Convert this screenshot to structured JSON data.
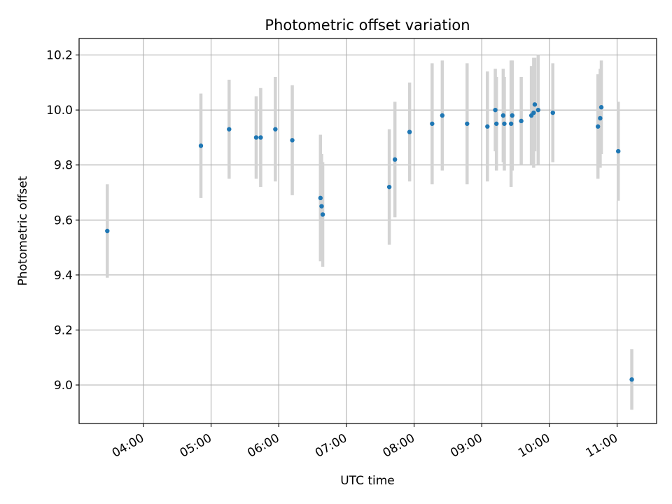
{
  "chart_data": {
    "type": "scatter",
    "title": "Photometric offset variation",
    "xlabel": "UTC time",
    "ylabel": "Photometric offset",
    "x_is_time": true,
    "xlim": [
      "03:03",
      "11:35"
    ],
    "ylim": [
      8.86,
      10.26
    ],
    "grid": true,
    "x_ticks": [
      "04:00",
      "05:00",
      "06:00",
      "07:00",
      "08:00",
      "09:00",
      "10:00",
      "11:00"
    ],
    "y_ticks": [
      9.0,
      9.2,
      9.4,
      9.6,
      9.8,
      10.0,
      10.2
    ],
    "y_tick_labels": [
      "9.0",
      "9.2",
      "9.4",
      "9.6",
      "9.8",
      "10.0",
      "10.2"
    ],
    "colors": {
      "point": "#1f77b4",
      "errorbar": "#d3d3d3",
      "grid": "#b0b0b0"
    },
    "series": [
      {
        "points": [
          {
            "x": "03:28",
            "y": 9.56,
            "yerr": 0.17
          },
          {
            "x": "04:51",
            "y": 9.87,
            "yerr": 0.19
          },
          {
            "x": "05:16",
            "y": 9.93,
            "yerr": 0.18
          },
          {
            "x": "05:40",
            "y": 9.9,
            "yerr": 0.15
          },
          {
            "x": "05:44",
            "y": 9.9,
            "yerr": 0.18
          },
          {
            "x": "05:57",
            "y": 9.93,
            "yerr": 0.19
          },
          {
            "x": "06:12",
            "y": 9.89,
            "yerr": 0.2
          },
          {
            "x": "06:37",
            "y": 9.68,
            "yerr": 0.23
          },
          {
            "x": "06:38",
            "y": 9.65,
            "yerr": 0.19
          },
          {
            "x": "06:39",
            "y": 9.62,
            "yerr": 0.19
          },
          {
            "x": "07:38",
            "y": 9.72,
            "yerr": 0.21
          },
          {
            "x": "07:43",
            "y": 9.82,
            "yerr": 0.21
          },
          {
            "x": "07:56",
            "y": 9.92,
            "yerr": 0.18
          },
          {
            "x": "08:16",
            "y": 9.95,
            "yerr": 0.22
          },
          {
            "x": "08:25",
            "y": 9.98,
            "yerr": 0.2
          },
          {
            "x": "08:47",
            "y": 9.95,
            "yerr": 0.22
          },
          {
            "x": "09:05",
            "y": 9.94,
            "yerr": 0.2
          },
          {
            "x": "09:12",
            "y": 10.0,
            "yerr": 0.15
          },
          {
            "x": "09:13",
            "y": 9.95,
            "yerr": 0.17
          },
          {
            "x": "09:19",
            "y": 9.98,
            "yerr": 0.17
          },
          {
            "x": "09:20",
            "y": 9.95,
            "yerr": 0.17
          },
          {
            "x": "09:26",
            "y": 9.95,
            "yerr": 0.23
          },
          {
            "x": "09:27",
            "y": 9.98,
            "yerr": 0.2
          },
          {
            "x": "09:35",
            "y": 9.96,
            "yerr": 0.16
          },
          {
            "x": "09:44",
            "y": 9.98,
            "yerr": 0.18
          },
          {
            "x": "09:46",
            "y": 9.99,
            "yerr": 0.2
          },
          {
            "x": "09:47",
            "y": 10.02,
            "yerr": 0.17
          },
          {
            "x": "09:50",
            "y": 10.0,
            "yerr": 0.2
          },
          {
            "x": "10:03",
            "y": 9.99,
            "yerr": 0.18
          },
          {
            "x": "10:43",
            "y": 9.94,
            "yerr": 0.19
          },
          {
            "x": "10:45",
            "y": 9.97,
            "yerr": 0.18
          },
          {
            "x": "10:46",
            "y": 10.01,
            "yerr": 0.17
          },
          {
            "x": "11:01",
            "y": 9.85,
            "yerr": 0.18
          },
          {
            "x": "11:13",
            "y": 9.02,
            "yerr": 0.11
          }
        ]
      }
    ]
  }
}
